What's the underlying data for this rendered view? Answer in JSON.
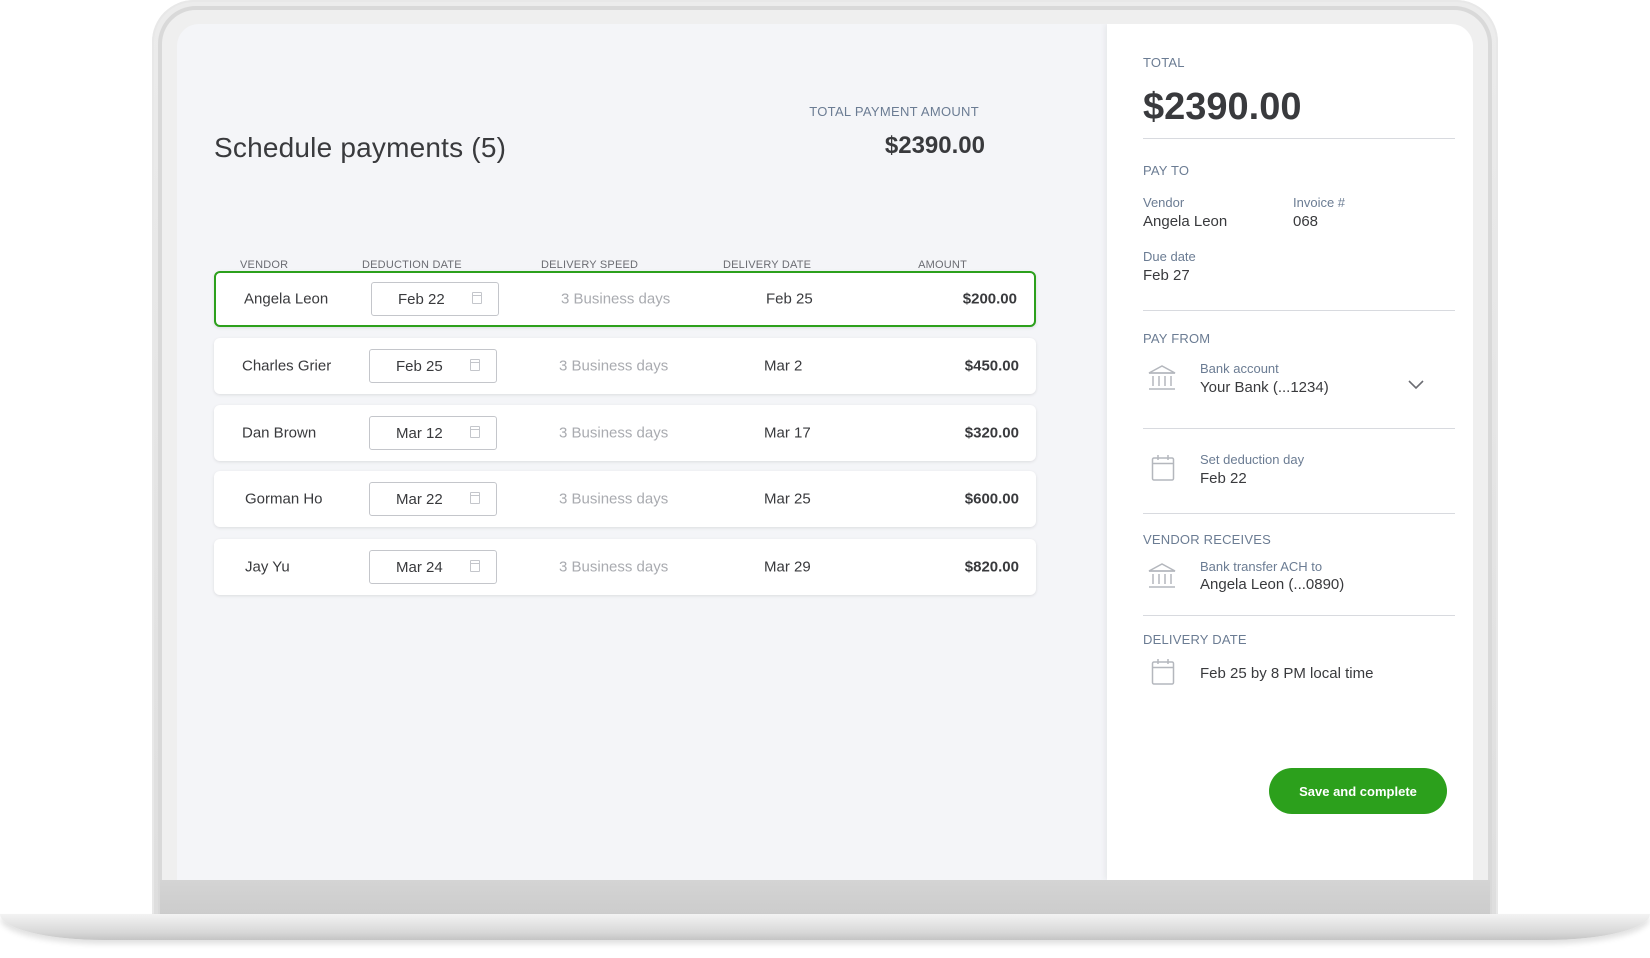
{
  "main": {
    "title": "Schedule payments (5)",
    "total_label": "TOTAL PAYMENT AMOUNT",
    "total_value": "$2390.00",
    "columns": {
      "vendor": "VENDOR",
      "deduction_date": "DEDUCTION DATE",
      "delivery_speed": "DELIVERY SPEED",
      "delivery_date": "DELIVERY DATE",
      "amount": "AMOUNT"
    },
    "rows": [
      {
        "vendor": "Angela Leon",
        "deduction_date": "Feb 22",
        "delivery_speed": "3 Business days",
        "delivery_date": "Feb 25",
        "amount": "$200.00"
      },
      {
        "vendor": "Charles Grier",
        "deduction_date": "Feb 25",
        "delivery_speed": "3 Business days",
        "delivery_date": "Mar 2",
        "amount": "$450.00"
      },
      {
        "vendor": "Dan Brown",
        "deduction_date": "Mar 12",
        "delivery_speed": "3 Business days",
        "delivery_date": "Mar 17",
        "amount": "$320.00"
      },
      {
        "vendor": "Gorman Ho",
        "deduction_date": "Mar 22",
        "delivery_speed": "3 Business days",
        "delivery_date": "Mar 25",
        "amount": "$600.00"
      },
      {
        "vendor": "Jay Yu",
        "deduction_date": "Mar 24",
        "delivery_speed": "3 Business days",
        "delivery_date": "Mar 29",
        "amount": "$820.00"
      }
    ]
  },
  "sidebar": {
    "total_label": "TOTAL",
    "total_value": "$2390.00",
    "pay_to": {
      "label": "PAY TO",
      "vendor_label": "Vendor",
      "vendor_value": "Angela Leon",
      "invoice_label": "Invoice #",
      "invoice_value": "068",
      "due_label": "Due date",
      "due_value": "Feb 27"
    },
    "pay_from": {
      "label": "PAY FROM",
      "account_label": "Bank account",
      "account_value": "Your Bank (...1234)",
      "deduction_label": "Set deduction day",
      "deduction_value": "Feb 22"
    },
    "vendor_receives": {
      "label": "VENDOR RECEIVES",
      "method_label": "Bank transfer ACH to",
      "method_value": "Angela Leon (...0890)"
    },
    "delivery": {
      "label": "DELIVERY DATE",
      "value": "Feb 25 by 8 PM local time"
    },
    "save_button": "Save and complete"
  },
  "colors": {
    "accent": "#2ca01c",
    "label": "#6b7c93",
    "text": "#393a3d",
    "muted": "#a9abb0"
  },
  "icons": [
    "calendar-icon",
    "bank-icon",
    "chevron-down-icon"
  ]
}
